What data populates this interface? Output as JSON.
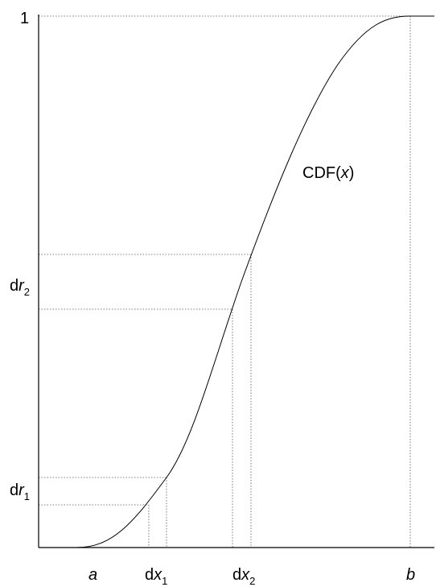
{
  "curve_label": {
    "text": "CDF(",
    "var": "x",
    "close": ")"
  },
  "y_labels": [
    {
      "text": "1"
    },
    {
      "prefix": "d",
      "var": "r",
      "sub": "2"
    },
    {
      "prefix": "d",
      "var": "r",
      "sub": "1"
    }
  ],
  "x_labels": [
    {
      "var": "a"
    },
    {
      "prefix": "d",
      "var": "x",
      "sub": "1"
    },
    {
      "prefix": "d",
      "var": "x",
      "sub": "2"
    },
    {
      "var": "b"
    }
  ]
}
